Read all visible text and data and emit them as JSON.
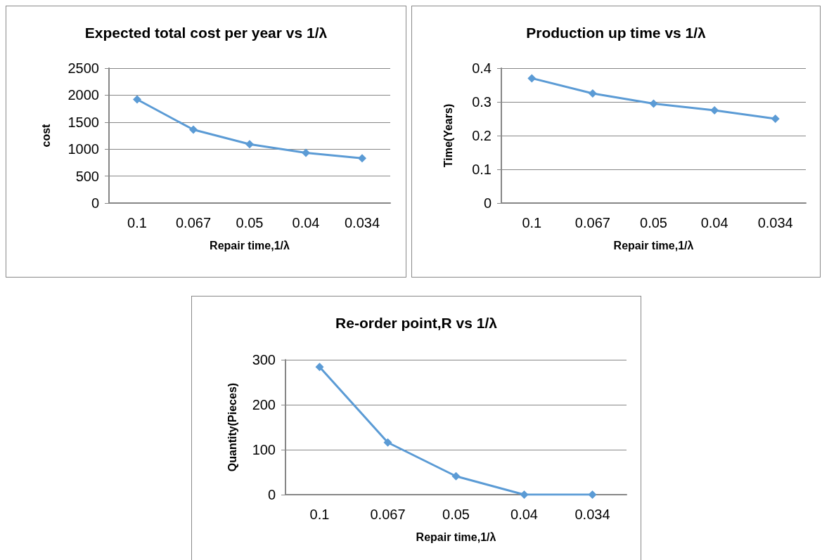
{
  "chart_data": [
    {
      "type": "line",
      "title": "Expected total cost per year vs 1/λ",
      "xlabel": "Repair time,1/λ",
      "ylabel": "cost",
      "categories": [
        "0.1",
        "0.067",
        "0.05",
        "0.04",
        "0.034"
      ],
      "series": [
        {
          "color": "#5b9bd5",
          "values": [
            1920,
            1360,
            1090,
            930,
            830
          ]
        }
      ],
      "ylim": [
        0,
        2500
      ],
      "yticks": [
        0,
        500,
        1000,
        1500,
        2000,
        2500
      ],
      "grid": "y",
      "marker": "diamond"
    },
    {
      "type": "line",
      "title": "Production up time vs 1/λ",
      "xlabel": "Repair time,1/λ",
      "ylabel": "Time(Years)",
      "categories": [
        "0.1",
        "0.067",
        "0.05",
        "0.04",
        "0.034"
      ],
      "series": [
        {
          "color": "#5b9bd5",
          "values": [
            0.37,
            0.325,
            0.295,
            0.275,
            0.25
          ]
        }
      ],
      "ylim": [
        0,
        0.4
      ],
      "yticks": [
        0,
        0.1,
        0.2,
        0.3,
        0.4
      ],
      "grid": "y",
      "marker": "diamond"
    },
    {
      "type": "line",
      "title": "Re-order point,R vs 1/λ",
      "xlabel": "Repair time,1/λ",
      "ylabel": "Quantity(Pieces)",
      "categories": [
        "0.1",
        "0.067",
        "0.05",
        "0.04",
        "0.034"
      ],
      "series": [
        {
          "color": "#5b9bd5",
          "values": [
            284,
            116,
            41,
            0,
            0
          ]
        }
      ],
      "ylim": [
        0,
        300
      ],
      "yticks": [
        0,
        100,
        200,
        300
      ],
      "grid": "y",
      "marker": "diamond"
    }
  ]
}
